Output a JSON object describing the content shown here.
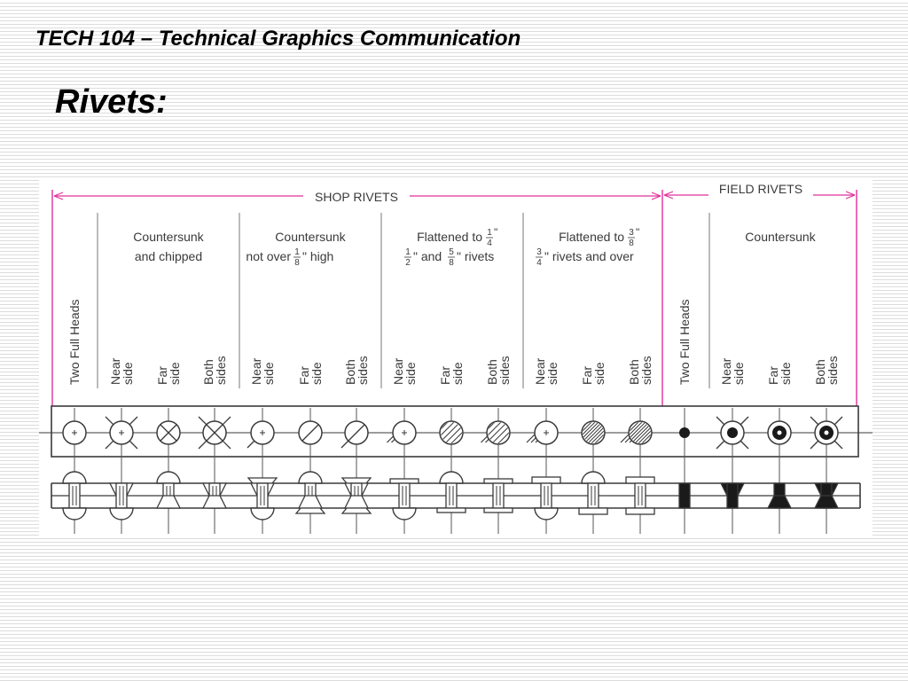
{
  "header": {
    "course_title": "TECH 104 – Technical Graphics Communication",
    "slide_title": "Rivets:"
  },
  "diagram": {
    "groups": {
      "shop": "SHOP RIVETS",
      "field": "FIELD RIVETS"
    },
    "categories": [
      {
        "line1": "Countersunk",
        "line2": "and chipped"
      },
      {
        "line1": "Countersunk",
        "line2_a": "not over",
        "frac_num": "1",
        "frac_den": "8",
        "line2_b": "\" high"
      },
      {
        "line1_a": "Flattened to",
        "frac1_num": "1",
        "frac1_den": "4",
        "line1_b": "\"",
        "fracA_num": "1",
        "fracA_den": "2",
        "line2_a": "\" and",
        "fracB_num": "5",
        "fracB_den": "8",
        "line2_b": "\" rivets"
      },
      {
        "line1_a": "Flattened to",
        "frac1_num": "3",
        "frac1_den": "8",
        "line1_b": "\"",
        "frac2_num": "3",
        "frac2_den": "4",
        "line2_b": "\" rivets and over"
      },
      {
        "line1": "Countersunk"
      }
    ],
    "columns": [
      {
        "label1": "Two Full Heads"
      },
      {
        "label1": "Near",
        "label2": "side"
      },
      {
        "label1": "Far",
        "label2": "side"
      },
      {
        "label1": "Both",
        "label2": "sides"
      },
      {
        "label1": "Near",
        "label2": "side"
      },
      {
        "label1": "Far",
        "label2": "side"
      },
      {
        "label1": "Both",
        "label2": "sides"
      },
      {
        "label1": "Near",
        "label2": "side"
      },
      {
        "label1": "Far",
        "label2": "side"
      },
      {
        "label1": "Both",
        "label2": "sides"
      },
      {
        "label1": "Near",
        "label2": "side"
      },
      {
        "label1": "Far",
        "label2": "side"
      },
      {
        "label1": "Both",
        "label2": "sides"
      },
      {
        "label1": "Two Full Heads"
      },
      {
        "label1": "Near",
        "label2": "side"
      },
      {
        "label1": "Far",
        "label2": "side"
      },
      {
        "label1": "Both",
        "label2": "sides"
      }
    ],
    "colors": {
      "dimension_line": "#e0309a",
      "line": "#3a3a3a",
      "fill": "#1a1a1a"
    }
  }
}
